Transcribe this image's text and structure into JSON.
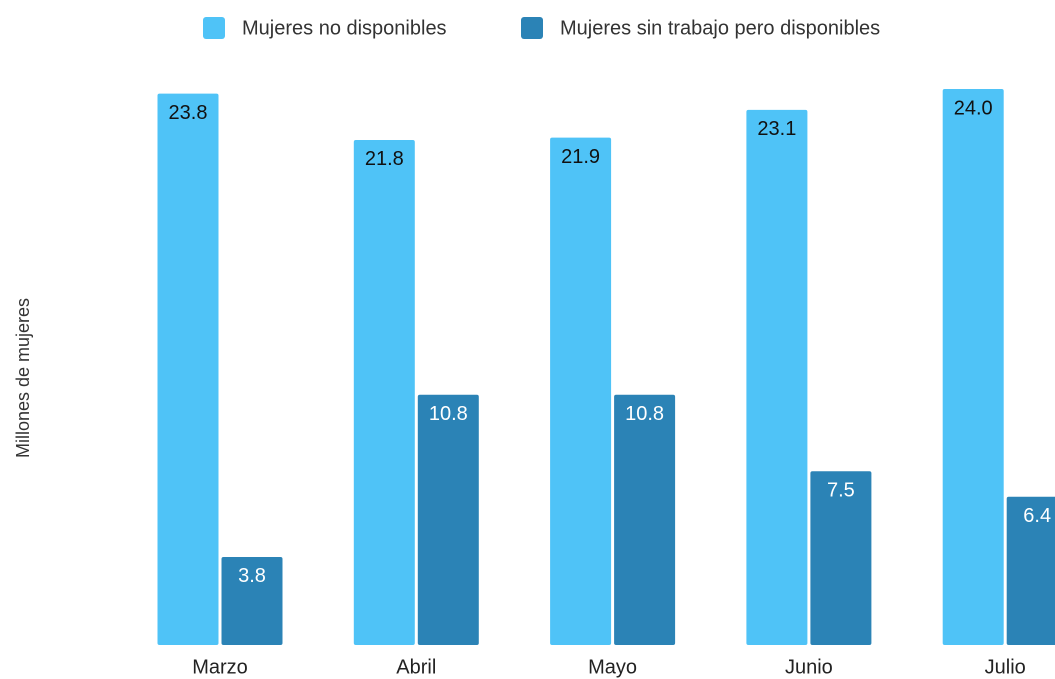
{
  "chart_data": {
    "type": "bar",
    "y_label": "Millones de mujeres",
    "categories": [
      "Marzo",
      "Abril",
      "Mayo",
      "Junio",
      "Julio"
    ],
    "series": [
      {
        "name": "Mujeres no disponibles",
        "color": "#4fc3f7",
        "values": [
          23.8,
          21.8,
          21.9,
          23.1,
          24.0
        ],
        "value_labels": [
          "23.8",
          "21.8",
          "21.9",
          "23.1",
          "24.0"
        ]
      },
      {
        "name": "Mujeres sin trabajo pero disponibles",
        "color": "#2b83b6",
        "values": [
          3.8,
          10.8,
          10.8,
          7.5,
          6.4
        ],
        "value_labels": [
          "3.8",
          "10.8",
          "10.8",
          "7.5",
          "6.4"
        ]
      }
    ],
    "legend": "top"
  }
}
